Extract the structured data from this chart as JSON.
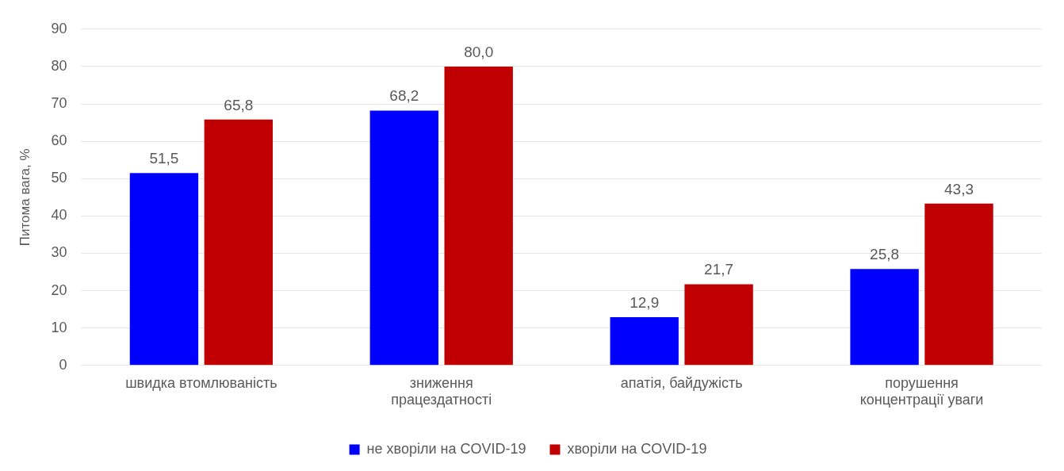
{
  "chart_data": {
    "type": "bar",
    "ylabel": "Питома вага, %",
    "categories": [
      "швидка втомлюваність",
      "зниження працездатності",
      "апатія, байдужість",
      "порушення концентрації уваги"
    ],
    "series": [
      {
        "name": "не хворіли на COVID-19",
        "color": "#0000ff",
        "values": [
          51.5,
          68.2,
          12.9,
          25.8
        ],
        "value_labels": [
          "51,5",
          "68,2",
          "12,9",
          "25,8"
        ]
      },
      {
        "name": "хворіли на COVID-19",
        "color": "#c00000",
        "values": [
          65.8,
          80.0,
          21.7,
          43.3
        ],
        "value_labels": [
          "65,8",
          "80,0",
          "21,7",
          "43,3"
        ]
      }
    ],
    "ylim": [
      0,
      90
    ],
    "yticks": [
      0,
      10,
      20,
      30,
      40,
      50,
      60,
      70,
      80,
      90
    ],
    "grid": "y",
    "legend": "bottom"
  }
}
